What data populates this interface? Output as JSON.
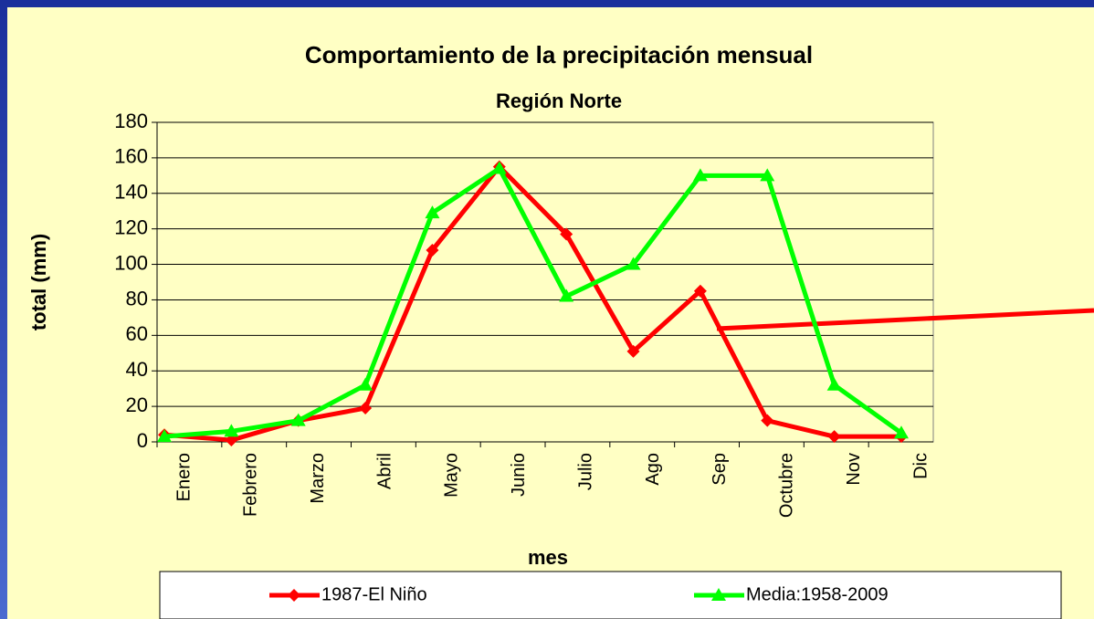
{
  "chart_data": {
    "type": "line",
    "title": "Comportamiento de la precipitación mensual",
    "subtitle": "Región Norte",
    "x_label": "mes",
    "y_label": "total (mm)",
    "categories": [
      "Enero",
      "Febrero",
      "Marzo",
      "Abril",
      "Mayo",
      "Junio",
      "Julio",
      "Ago",
      "Sep",
      "Octubre",
      "Nov",
      "Dic"
    ],
    "series": [
      {
        "name": "1987-El Niño",
        "color": "#ff0000",
        "marker": "diamond",
        "values": [
          4,
          1,
          12,
          19,
          108,
          155,
          117,
          51,
          85,
          12,
          3,
          3
        ]
      },
      {
        "name": "Media:1958-2009",
        "color": "#00ff00",
        "marker": "triangle",
        "values": [
          3,
          6,
          12,
          32,
          129,
          154,
          82,
          100,
          150,
          150,
          32,
          5
        ]
      }
    ],
    "ylim": [
      0,
      180
    ],
    "yticks": [
      0,
      20,
      40,
      60,
      80,
      100,
      120,
      140,
      160,
      180
    ],
    "grid": true,
    "legend": "bottom"
  }
}
